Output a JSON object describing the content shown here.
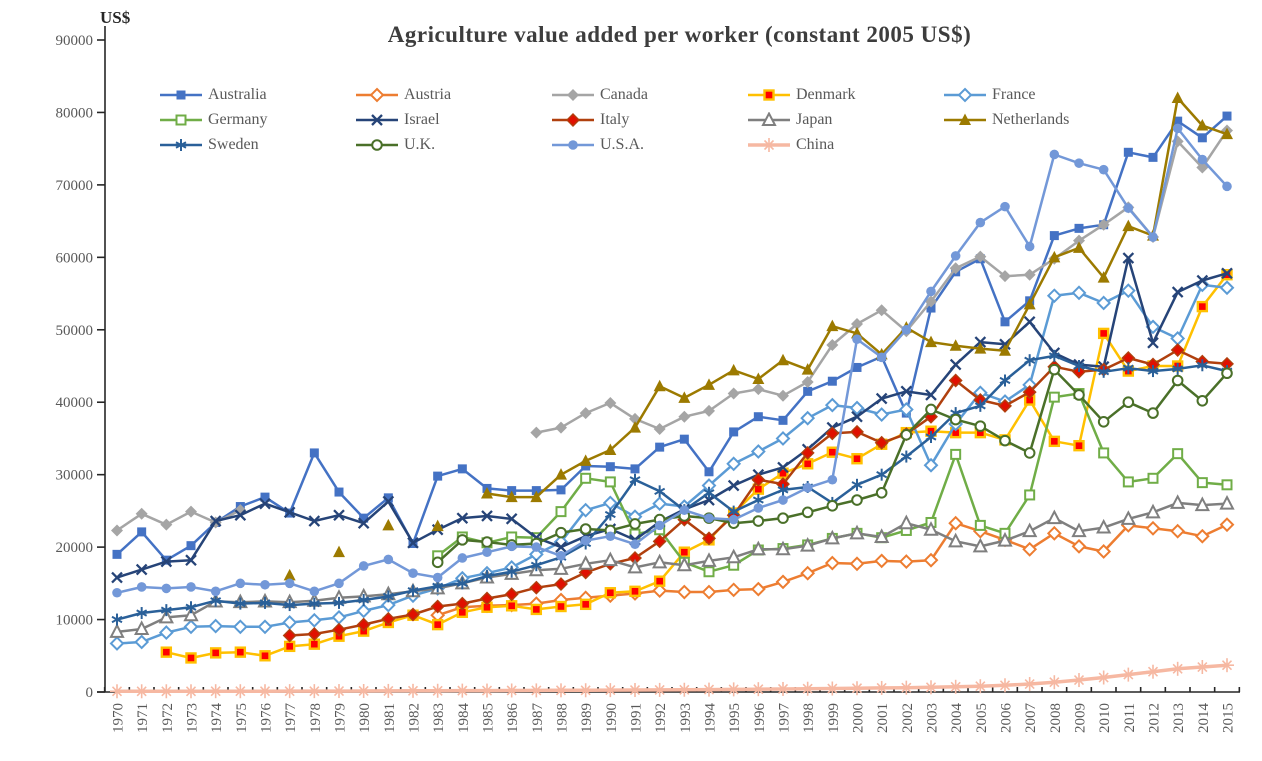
{
  "page": {
    "background": "#ffffff"
  },
  "chart_data": {
    "type": "line",
    "title": "Agriculture value added per worker (constant 2005 US$)",
    "ylabel": "US$",
    "xlabel": "",
    "ylim": [
      0,
      90000
    ],
    "ytick_step": 10000,
    "grid": false,
    "legend_position": "top",
    "legend_rows": [
      [
        "Australia",
        "Austria",
        "Canada",
        "Denmark",
        "France"
      ],
      [
        "Germany",
        "Israel",
        "Italy",
        "Japan",
        "Netherlands"
      ],
      [
        "Sweden",
        "U.K.",
        "U.S.A.",
        "China"
      ]
    ],
    "x": [
      1970,
      1971,
      1972,
      1973,
      1974,
      1975,
      1976,
      1977,
      1978,
      1979,
      1980,
      1981,
      1982,
      1983,
      1984,
      1985,
      1986,
      1987,
      1988,
      1989,
      1990,
      1991,
      1992,
      1993,
      1994,
      1995,
      1996,
      1997,
      1998,
      1999,
      2000,
      2001,
      2002,
      2003,
      2004,
      2005,
      2006,
      2007,
      2008,
      2009,
      2010,
      2011,
      2012,
      2013,
      2014,
      2015
    ],
    "series": [
      {
        "name": "Australia",
        "line_color": "#4472c4",
        "line_width": 2.5,
        "marker": {
          "type": "square",
          "fill": "#4472c4"
        },
        "values": [
          19000,
          22100,
          18200,
          20200,
          23400,
          25600,
          26900,
          24700,
          33000,
          27600,
          24000,
          26800,
          20500,
          29800,
          30800,
          28100,
          27800,
          27800,
          27900,
          31200,
          31100,
          30800,
          33800,
          34900,
          30400,
          35900,
          38000,
          37500,
          41500,
          42900,
          44800,
          46300,
          38500,
          53000,
          58000,
          59800,
          51100,
          54000,
          63000,
          64000,
          64500,
          74500,
          73800,
          78800,
          76500,
          79500
        ]
      },
      {
        "name": "Austria",
        "line_color": "#ed7d31",
        "line_width": 2.5,
        "marker": {
          "type": "diamond-open",
          "stroke": "#ed7d31"
        },
        "values": [
          null,
          null,
          null,
          null,
          null,
          null,
          null,
          null,
          null,
          null,
          null,
          null,
          null,
          10600,
          11700,
          11900,
          12000,
          12200,
          12700,
          13000,
          13300,
          13600,
          14000,
          13800,
          13800,
          14100,
          14200,
          15200,
          16400,
          17800,
          17700,
          18100,
          18000,
          18200,
          23300,
          22200,
          21000,
          19700,
          21900,
          20100,
          19400,
          23000,
          22600,
          22200,
          21500,
          23100
        ]
      },
      {
        "name": "Canada",
        "line_color": "#a5a5a5",
        "line_width": 2.5,
        "marker": {
          "type": "diamond",
          "fill": "#a5a5a5"
        },
        "values": [
          22300,
          24600,
          23100,
          24900,
          23400,
          25100,
          null,
          null,
          null,
          null,
          null,
          null,
          null,
          null,
          null,
          null,
          null,
          35800,
          36500,
          38500,
          39900,
          37700,
          36300,
          38000,
          38800,
          41200,
          41800,
          40900,
          42800,
          47900,
          50800,
          52700,
          49800,
          53900,
          58500,
          60100,
          57400,
          57600,
          59800,
          62300,
          64500,
          66900,
          62800,
          76000,
          72400,
          77500
        ]
      },
      {
        "name": "Denmark",
        "line_color": "#ffc000",
        "line_width": 2.5,
        "marker": {
          "type": "square",
          "fill": "#ff0000",
          "stroke": "#ffc000",
          "stroke_width": 2.4
        },
        "values": [
          null,
          null,
          5500,
          4700,
          5400,
          5500,
          5000,
          6300,
          6600,
          7700,
          8400,
          9600,
          10600,
          9300,
          11000,
          11700,
          11900,
          11400,
          11800,
          12100,
          13700,
          13900,
          15300,
          19300,
          21000,
          24700,
          28000,
          30200,
          31500,
          33100,
          32200,
          34200,
          35800,
          36000,
          35800,
          35800,
          34800,
          40300,
          34600,
          34000,
          49500,
          44300,
          45000,
          45000,
          53200,
          57600
        ]
      },
      {
        "name": "France",
        "line_color": "#5b9bd5",
        "line_width": 2.5,
        "marker": {
          "type": "diamond-open",
          "stroke": "#5b9bd5"
        },
        "values": [
          6700,
          6900,
          8200,
          9000,
          9100,
          9000,
          9000,
          9600,
          9900,
          10300,
          11200,
          12000,
          13300,
          14300,
          15700,
          16400,
          17200,
          19000,
          20700,
          25100,
          26100,
          24200,
          26000,
          25600,
          28500,
          31500,
          33200,
          35000,
          37800,
          39600,
          39200,
          38300,
          39000,
          31300,
          37000,
          41300,
          40100,
          42400,
          54700,
          55100,
          53700,
          55400,
          50400,
          48800,
          56200,
          55800
        ]
      },
      {
        "name": "Germany",
        "line_color": "#70ad47",
        "line_width": 2.5,
        "marker": {
          "type": "square-open",
          "stroke": "#70ad47"
        },
        "values": [
          null,
          null,
          null,
          null,
          null,
          null,
          null,
          null,
          null,
          null,
          null,
          null,
          null,
          18800,
          21400,
          20600,
          21400,
          21300,
          24900,
          29500,
          29000,
          21800,
          22400,
          17900,
          16600,
          17500,
          19600,
          19800,
          20300,
          21200,
          21900,
          21300,
          22300,
          23400,
          32800,
          23000,
          21900,
          27200,
          40700,
          41200,
          33000,
          29000,
          29500,
          32900,
          28900,
          28600
        ]
      },
      {
        "name": "Israel",
        "line_color": "#264478",
        "line_width": 2.5,
        "marker": {
          "type": "x",
          "stroke": "#264478"
        },
        "values": [
          15800,
          16900,
          18000,
          18200,
          23600,
          24400,
          26000,
          24800,
          23600,
          24400,
          23300,
          26300,
          20600,
          22400,
          24000,
          24300,
          23900,
          21300,
          20000,
          21500,
          22500,
          21000,
          23500,
          25200,
          26500,
          28500,
          30000,
          31000,
          33500,
          36500,
          38000,
          40500,
          41500,
          41000,
          45200,
          48300,
          48000,
          51100,
          46800,
          45200,
          44900,
          59900,
          48200,
          55200,
          56800,
          57800
        ]
      },
      {
        "name": "Italy",
        "line_color": "#b0400e",
        "line_width": 2.5,
        "marker": {
          "type": "diamond",
          "fill": "#e01000",
          "stroke": "#b0400e",
          "stroke_width": 1.4
        },
        "values": [
          null,
          null,
          null,
          null,
          null,
          null,
          null,
          7800,
          8000,
          8600,
          9300,
          10100,
          10700,
          11800,
          12200,
          12900,
          13500,
          14400,
          14900,
          16500,
          17700,
          18500,
          20800,
          23800,
          21200,
          24400,
          29300,
          28700,
          33000,
          35700,
          35900,
          34400,
          35600,
          38000,
          43000,
          40300,
          39500,
          41400,
          44900,
          44200,
          44500,
          46100,
          45200,
          47200,
          45600,
          45300
        ]
      },
      {
        "name": "Japan",
        "line_color": "#7f7f7f",
        "line_width": 2.5,
        "marker": {
          "type": "triangle-open",
          "stroke": "#7f7f7f"
        },
        "values": [
          8300,
          8700,
          10300,
          10600,
          12500,
          12400,
          12500,
          12400,
          12600,
          13000,
          13200,
          13500,
          13900,
          14300,
          15000,
          15800,
          16300,
          16800,
          17000,
          17700,
          18200,
          17200,
          17900,
          17500,
          18100,
          18600,
          19700,
          19700,
          20200,
          21200,
          21900,
          21400,
          23300,
          22400,
          20800,
          20100,
          20900,
          22200,
          24000,
          22200,
          22700,
          23900,
          24800,
          26100,
          25800,
          26000
        ]
      },
      {
        "name": "Netherlands",
        "line_color": "#9c7a00",
        "line_width": 2.5,
        "marker": {
          "type": "triangle",
          "fill": "#9c7a00"
        },
        "values": [
          null,
          null,
          null,
          null,
          null,
          null,
          null,
          16100,
          null,
          19300,
          null,
          23000,
          null,
          22900,
          null,
          27400,
          26900,
          26900,
          30000,
          31900,
          33400,
          36500,
          42200,
          40600,
          42400,
          44400,
          43200,
          45800,
          44500,
          50500,
          49500,
          46600,
          50300,
          48300,
          47800,
          47400,
          47100,
          53500,
          60000,
          61300,
          57200,
          64300,
          63000,
          82000,
          78200,
          77000
        ]
      },
      {
        "name": "Sweden",
        "line_color": "#2a6099",
        "line_width": 2.5,
        "marker": {
          "type": "asterisk",
          "stroke": "#2a6099"
        },
        "values": [
          10000,
          10900,
          11300,
          11700,
          12600,
          12200,
          12300,
          12000,
          12200,
          12300,
          12700,
          13200,
          14000,
          14600,
          15000,
          16000,
          16600,
          17500,
          18600,
          20500,
          24500,
          29300,
          27700,
          25100,
          27500,
          24900,
          26500,
          27900,
          28300,
          26100,
          28600,
          30000,
          32500,
          35200,
          38500,
          39500,
          43000,
          45800,
          46400,
          45000,
          44200,
          44700,
          44300,
          44600,
          45100,
          44300
        ]
      },
      {
        "name": "U.K.",
        "line_color": "#4a7029",
        "line_width": 2.5,
        "marker": {
          "type": "circle-open",
          "stroke": "#4a7029"
        },
        "values": [
          null,
          null,
          null,
          null,
          null,
          null,
          null,
          null,
          null,
          null,
          null,
          null,
          null,
          17900,
          21000,
          20700,
          20300,
          20500,
          22000,
          22500,
          22300,
          23200,
          23800,
          24300,
          24000,
          23300,
          23600,
          24000,
          24800,
          25700,
          26500,
          27500,
          35500,
          39000,
          37600,
          36700,
          34700,
          33000,
          44500,
          41000,
          37300,
          40000,
          38500,
          43000,
          40200,
          44000
        ]
      },
      {
        "name": "U.S.A.",
        "line_color": "#7398d8",
        "line_width": 2.5,
        "marker": {
          "type": "circle",
          "fill": "#7398d8"
        },
        "values": [
          13700,
          14500,
          14300,
          14500,
          13900,
          15000,
          14800,
          15000,
          13900,
          15000,
          17400,
          18300,
          16400,
          15800,
          18500,
          19300,
          20100,
          20000,
          18800,
          20900,
          21500,
          20400,
          23000,
          25100,
          24000,
          23800,
          25400,
          26500,
          28200,
          29300,
          48700,
          46200,
          50000,
          55300,
          60200,
          64800,
          67000,
          61500,
          74200,
          73000,
          72100,
          66800,
          62800,
          77800,
          73500,
          69800
        ]
      },
      {
        "name": "China",
        "line_color": "#f6b8a2",
        "line_width": 3.5,
        "marker": {
          "type": "star",
          "stroke": "#f6b8a2"
        },
        "values": [
          100,
          100,
          100,
          100,
          110,
          110,
          110,
          120,
          120,
          130,
          140,
          150,
          160,
          170,
          190,
          200,
          210,
          220,
          230,
          240,
          260,
          270,
          290,
          310,
          330,
          360,
          390,
          420,
          450,
          480,
          520,
          560,
          600,
          650,
          720,
          800,
          930,
          1100,
          1350,
          1650,
          2000,
          2400,
          2800,
          3200,
          3450,
          3700
        ]
      }
    ]
  }
}
